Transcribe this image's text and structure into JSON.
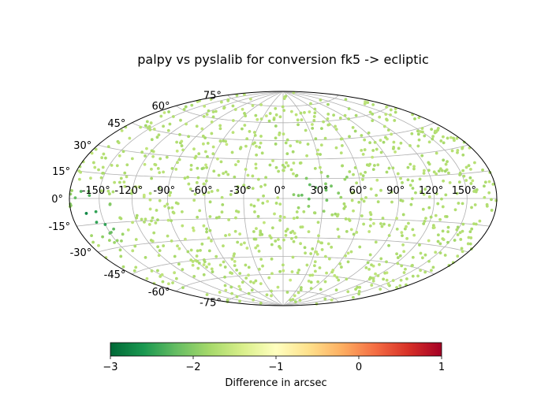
{
  "chart_data": {
    "type": "scatter",
    "projection": "aitoff-hammer",
    "title": "palpy vs pyslalib for conversion fk5 -> ecliptic",
    "x_ticks": [
      -150,
      -120,
      -90,
      -60,
      -30,
      0,
      30,
      60,
      90,
      120,
      150
    ],
    "x_tick_labels": [
      "-150°",
      "-120°",
      "-90°",
      "-60°",
      "-30°",
      "0°",
      "30°",
      "60°",
      "90°",
      "120°",
      "150°"
    ],
    "y_ticks": [
      75,
      60,
      45,
      30,
      15,
      0,
      -15,
      -30,
      -45,
      -60,
      -75
    ],
    "y_tick_labels": [
      "75°",
      "60°",
      "45°",
      "30°",
      "15°",
      "0°",
      "-15°",
      "-30°",
      "-45°",
      "-60°",
      "-75°"
    ],
    "grid": true,
    "point_count": 1000,
    "typical_value": -1.7,
    "clusters": [
      {
        "lon_deg": -165,
        "lat_deg": -6,
        "value": -2.9
      },
      {
        "lon_deg": -160,
        "lat_deg": -9,
        "value": -2.8
      },
      {
        "lon_deg": -150,
        "lat_deg": -12,
        "value": -2.7
      },
      {
        "lon_deg": 20,
        "lat_deg": 5,
        "value": -2.4
      },
      {
        "lon_deg": 30,
        "lat_deg": 3,
        "value": -2.3
      },
      {
        "lon_deg": 40,
        "lat_deg": 10,
        "value": -2.2
      }
    ],
    "colorbar": {
      "label": "Difference in arcsec",
      "ticks": [
        -3,
        -2,
        -1,
        0,
        1
      ],
      "tick_labels": [
        "−3",
        "−2",
        "−1",
        "0",
        "1"
      ],
      "range": [
        -3,
        1
      ],
      "colormap": "RdYlGn_r"
    },
    "colors": {
      "grid": "#b0b0b0",
      "frame": "#000000",
      "cmap_stops": [
        "#006837",
        "#1a9850",
        "#66bd63",
        "#a6d96a",
        "#d9ef8b",
        "#ffffbf",
        "#fee08b",
        "#fdae61",
        "#f46d43",
        "#d73027",
        "#a50026"
      ]
    }
  }
}
